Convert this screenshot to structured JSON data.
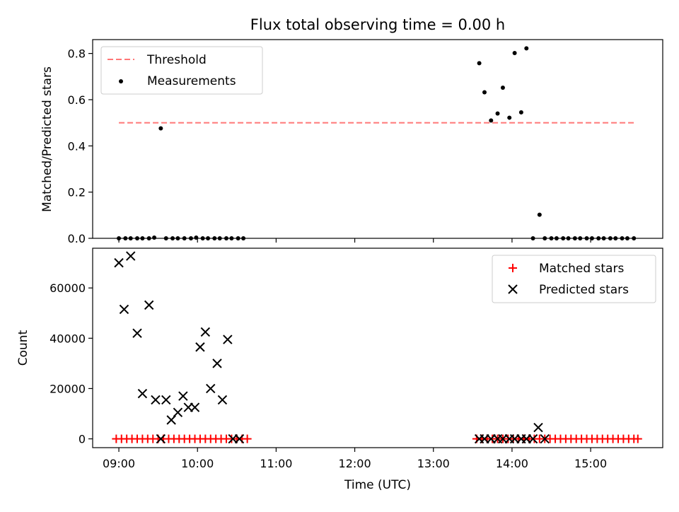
{
  "chart_data": [
    {
      "type": "scatter",
      "title": "Flux total observing time = 0.00 h",
      "xlabel": "",
      "ylabel": "Matched/Predicted stars",
      "xlim": [
        "08:40",
        "15:55"
      ],
      "ylim": [
        0,
        0.86
      ],
      "yticks": [
        0.0,
        0.2,
        0.4,
        0.6,
        0.8
      ],
      "ytick_labels": [
        "0.0",
        "0.2",
        "0.4",
        "0.6",
        "0.8"
      ],
      "legend_position": "top-left",
      "series": [
        {
          "name": "Threshold",
          "style": "dashed-line",
          "color": "#ff7777",
          "x": [
            "09:00",
            "15:35"
          ],
          "y": [
            0.5,
            0.5
          ]
        },
        {
          "name": "Measurements",
          "style": "dot",
          "color": "#000000",
          "x": [
            "09:00",
            "09:05",
            "09:09",
            "09:14",
            "09:18",
            "09:23",
            "09:27",
            "09:32",
            "09:36",
            "09:41",
            "09:45",
            "09:50",
            "09:55",
            "09:59",
            "10:04",
            "10:08",
            "10:13",
            "10:17",
            "10:22",
            "10:26",
            "10:31",
            "10:35",
            "13:35",
            "13:39",
            "13:44",
            "13:49",
            "13:53",
            "13:58",
            "14:02",
            "14:07",
            "14:11",
            "14:16",
            "14:21",
            "14:25",
            "14:30",
            "14:34",
            "14:39",
            "14:43",
            "14:48",
            "14:52",
            "14:57",
            "15:01",
            "15:06",
            "15:10",
            "15:15",
            "15:19",
            "15:24",
            "15:28",
            "15:33"
          ],
          "y": [
            0.0,
            0.0,
            0.0,
            0.0,
            0.0,
            0.0,
            0.003,
            0.476,
            0.0,
            0.0,
            0.0,
            0.0,
            0.0,
            0.003,
            0.0,
            0.0,
            0.0,
            0.0,
            0.0,
            0.0,
            0.0,
            0.0,
            0.758,
            0.632,
            0.51,
            0.54,
            0.652,
            0.522,
            0.802,
            0.545,
            0.822,
            0.0,
            0.102,
            0.0,
            0.0,
            0.0,
            0.0,
            0.0,
            0.0,
            0.0,
            0.0,
            0.0,
            0.0,
            0.0,
            0.0,
            0.0,
            0.0,
            0.0,
            0.0
          ]
        }
      ]
    },
    {
      "type": "scatter",
      "title": "",
      "xlabel": "Time (UTC)",
      "ylabel": "Count",
      "xlim": [
        "08:40",
        "15:55"
      ],
      "ylim": [
        -3500,
        75800
      ],
      "xticks": [
        "09:00",
        "10:00",
        "11:00",
        "12:00",
        "13:00",
        "14:00",
        "15:00"
      ],
      "yticks": [
        0,
        20000,
        40000,
        60000
      ],
      "ytick_labels": [
        "0",
        "20000",
        "40000",
        "60000"
      ],
      "legend_position": "top-right",
      "series": [
        {
          "name": "Matched stars",
          "style": "plus",
          "color": "#ff0000",
          "x": [
            "08:58",
            "09:02",
            "09:06",
            "09:10",
            "09:14",
            "09:18",
            "09:22",
            "09:26",
            "09:30",
            "09:34",
            "09:38",
            "09:42",
            "09:46",
            "09:50",
            "09:54",
            "09:58",
            "10:02",
            "10:06",
            "10:10",
            "10:14",
            "10:18",
            "10:22",
            "10:26",
            "10:30",
            "10:34",
            "10:38",
            "13:33",
            "13:37",
            "13:41",
            "13:45",
            "13:49",
            "13:53",
            "13:57",
            "14:01",
            "14:05",
            "14:09",
            "14:13",
            "14:17",
            "14:21",
            "14:25",
            "14:29",
            "14:33",
            "14:37",
            "14:41",
            "14:45",
            "14:49",
            "14:53",
            "14:57",
            "15:01",
            "15:05",
            "15:09",
            "15:13",
            "15:17",
            "15:21",
            "15:25",
            "15:29",
            "15:33",
            "15:36"
          ],
          "y": [
            0,
            0,
            0,
            0,
            0,
            0,
            0,
            0,
            0,
            0,
            0,
            0,
            0,
            0,
            0,
            0,
            0,
            0,
            0,
            0,
            0,
            0,
            0,
            0,
            0,
            0,
            0,
            0,
            0,
            0,
            0,
            0,
            0,
            0,
            0,
            0,
            0,
            0,
            0,
            0,
            0,
            0,
            0,
            0,
            0,
            0,
            0,
            0,
            0,
            0,
            0,
            0,
            0,
            0,
            0,
            0,
            0,
            0
          ]
        },
        {
          "name": "Predicted stars",
          "style": "x",
          "color": "#000000",
          "x": [
            "09:00",
            "09:04",
            "09:09",
            "09:14",
            "09:18",
            "09:23",
            "09:28",
            "09:32",
            "09:36",
            "09:40",
            "09:45",
            "09:49",
            "09:53",
            "09:58",
            "10:02",
            "10:06",
            "10:10",
            "10:15",
            "10:19",
            "10:23",
            "10:27",
            "10:32",
            "13:35",
            "13:39",
            "13:44",
            "13:49",
            "13:53",
            "13:58",
            "14:02",
            "14:07",
            "14:11",
            "14:16",
            "14:20",
            "14:25"
          ],
          "y": [
            70000,
            51500,
            72700,
            42000,
            18000,
            53200,
            15500,
            0,
            15500,
            7500,
            10500,
            17000,
            12500,
            12500,
            36500,
            42500,
            20000,
            30000,
            15500,
            39500,
            0,
            0,
            0,
            0,
            0,
            0,
            0,
            0,
            0,
            0,
            0,
            0,
            4500,
            0
          ]
        }
      ]
    }
  ]
}
